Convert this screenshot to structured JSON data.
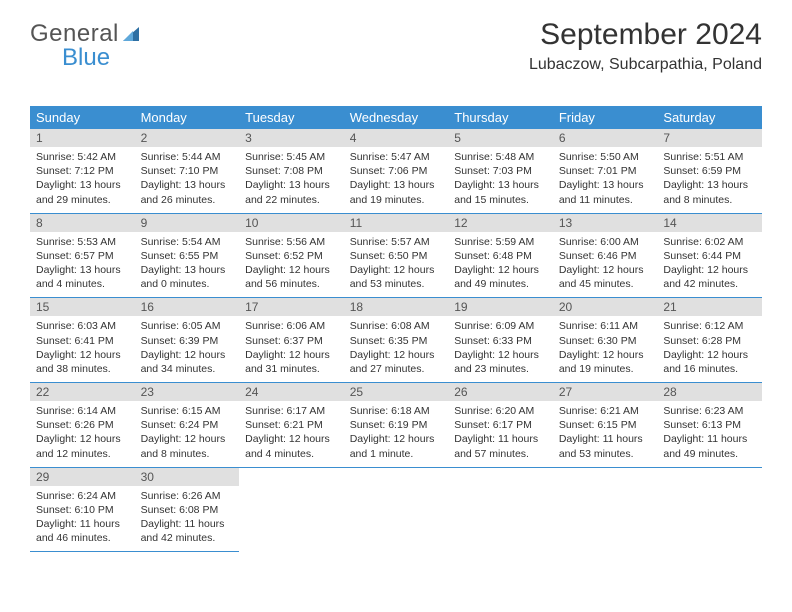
{
  "logo": {
    "text_general": "General",
    "text_blue": "Blue",
    "icon_color": "#2d6fa3"
  },
  "header": {
    "month_title": "September 2024",
    "location": "Lubaczow, Subcarpathia, Poland",
    "title_fontsize": 30,
    "location_fontsize": 16,
    "text_color": "#333333"
  },
  "colors": {
    "header_bg": "#3a8ed0",
    "header_fg": "#ffffff",
    "daynum_bg": "#e0e0e0",
    "daynum_fg": "#555555",
    "border": "#3a8ed0",
    "body_text": "#333333",
    "page_bg": "#ffffff"
  },
  "weekdays": [
    "Sunday",
    "Monday",
    "Tuesday",
    "Wednesday",
    "Thursday",
    "Friday",
    "Saturday"
  ],
  "days": [
    {
      "num": "1",
      "sunrise": "5:42 AM",
      "sunset": "7:12 PM",
      "daylight": "13 hours and 29 minutes."
    },
    {
      "num": "2",
      "sunrise": "5:44 AM",
      "sunset": "7:10 PM",
      "daylight": "13 hours and 26 minutes."
    },
    {
      "num": "3",
      "sunrise": "5:45 AM",
      "sunset": "7:08 PM",
      "daylight": "13 hours and 22 minutes."
    },
    {
      "num": "4",
      "sunrise": "5:47 AM",
      "sunset": "7:06 PM",
      "daylight": "13 hours and 19 minutes."
    },
    {
      "num": "5",
      "sunrise": "5:48 AM",
      "sunset": "7:03 PM",
      "daylight": "13 hours and 15 minutes."
    },
    {
      "num": "6",
      "sunrise": "5:50 AM",
      "sunset": "7:01 PM",
      "daylight": "13 hours and 11 minutes."
    },
    {
      "num": "7",
      "sunrise": "5:51 AM",
      "sunset": "6:59 PM",
      "daylight": "13 hours and 8 minutes."
    },
    {
      "num": "8",
      "sunrise": "5:53 AM",
      "sunset": "6:57 PM",
      "daylight": "13 hours and 4 minutes."
    },
    {
      "num": "9",
      "sunrise": "5:54 AM",
      "sunset": "6:55 PM",
      "daylight": "13 hours and 0 minutes."
    },
    {
      "num": "10",
      "sunrise": "5:56 AM",
      "sunset": "6:52 PM",
      "daylight": "12 hours and 56 minutes."
    },
    {
      "num": "11",
      "sunrise": "5:57 AM",
      "sunset": "6:50 PM",
      "daylight": "12 hours and 53 minutes."
    },
    {
      "num": "12",
      "sunrise": "5:59 AM",
      "sunset": "6:48 PM",
      "daylight": "12 hours and 49 minutes."
    },
    {
      "num": "13",
      "sunrise": "6:00 AM",
      "sunset": "6:46 PM",
      "daylight": "12 hours and 45 minutes."
    },
    {
      "num": "14",
      "sunrise": "6:02 AM",
      "sunset": "6:44 PM",
      "daylight": "12 hours and 42 minutes."
    },
    {
      "num": "15",
      "sunrise": "6:03 AM",
      "sunset": "6:41 PM",
      "daylight": "12 hours and 38 minutes."
    },
    {
      "num": "16",
      "sunrise": "6:05 AM",
      "sunset": "6:39 PM",
      "daylight": "12 hours and 34 minutes."
    },
    {
      "num": "17",
      "sunrise": "6:06 AM",
      "sunset": "6:37 PM",
      "daylight": "12 hours and 31 minutes."
    },
    {
      "num": "18",
      "sunrise": "6:08 AM",
      "sunset": "6:35 PM",
      "daylight": "12 hours and 27 minutes."
    },
    {
      "num": "19",
      "sunrise": "6:09 AM",
      "sunset": "6:33 PM",
      "daylight": "12 hours and 23 minutes."
    },
    {
      "num": "20",
      "sunrise": "6:11 AM",
      "sunset": "6:30 PM",
      "daylight": "12 hours and 19 minutes."
    },
    {
      "num": "21",
      "sunrise": "6:12 AM",
      "sunset": "6:28 PM",
      "daylight": "12 hours and 16 minutes."
    },
    {
      "num": "22",
      "sunrise": "6:14 AM",
      "sunset": "6:26 PM",
      "daylight": "12 hours and 12 minutes."
    },
    {
      "num": "23",
      "sunrise": "6:15 AM",
      "sunset": "6:24 PM",
      "daylight": "12 hours and 8 minutes."
    },
    {
      "num": "24",
      "sunrise": "6:17 AM",
      "sunset": "6:21 PM",
      "daylight": "12 hours and 4 minutes."
    },
    {
      "num": "25",
      "sunrise": "6:18 AM",
      "sunset": "6:19 PM",
      "daylight": "12 hours and 1 minute."
    },
    {
      "num": "26",
      "sunrise": "6:20 AM",
      "sunset": "6:17 PM",
      "daylight": "11 hours and 57 minutes."
    },
    {
      "num": "27",
      "sunrise": "6:21 AM",
      "sunset": "6:15 PM",
      "daylight": "11 hours and 53 minutes."
    },
    {
      "num": "28",
      "sunrise": "6:23 AM",
      "sunset": "6:13 PM",
      "daylight": "11 hours and 49 minutes."
    },
    {
      "num": "29",
      "sunrise": "6:24 AM",
      "sunset": "6:10 PM",
      "daylight": "11 hours and 46 minutes."
    },
    {
      "num": "30",
      "sunrise": "6:26 AM",
      "sunset": "6:08 PM",
      "daylight": "11 hours and 42 minutes."
    }
  ],
  "labels": {
    "sunrise": "Sunrise: ",
    "sunset": "Sunset: ",
    "daylight": "Daylight: "
  },
  "layout": {
    "columns": 7,
    "rows": 5,
    "first_day_offset": 0,
    "trailing_blanks": 5
  }
}
